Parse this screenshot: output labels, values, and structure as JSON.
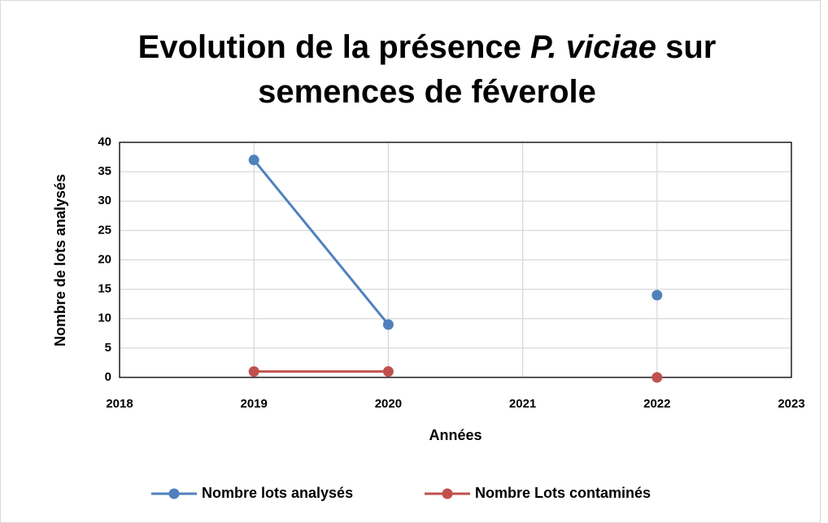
{
  "chart_data": {
    "type": "line",
    "title": [
      "Evolution de la présence ",
      "P. viciae",
      " sur",
      "semences de féverole"
    ],
    "x_label": "Années",
    "y_label": "Nombre de lots analysés",
    "x": [
      2019,
      2020,
      2021,
      2022
    ],
    "series": [
      {
        "name": "Nombre lots analysés",
        "color": "#4f81bd",
        "values": [
          37,
          9,
          null,
          14
        ]
      },
      {
        "name": "Nombre Lots contaminés",
        "color": "#c0504d",
        "values": [
          1,
          1,
          null,
          0
        ]
      }
    ],
    "xlim": [
      2018,
      2023
    ],
    "xticks": [
      2018,
      2019,
      2020,
      2021,
      2022,
      2023
    ],
    "ylim": [
      0,
      40
    ],
    "yticks": [
      0,
      5,
      10,
      15,
      20,
      25,
      30,
      35,
      40
    ],
    "grid": true,
    "legend": "bottom"
  }
}
